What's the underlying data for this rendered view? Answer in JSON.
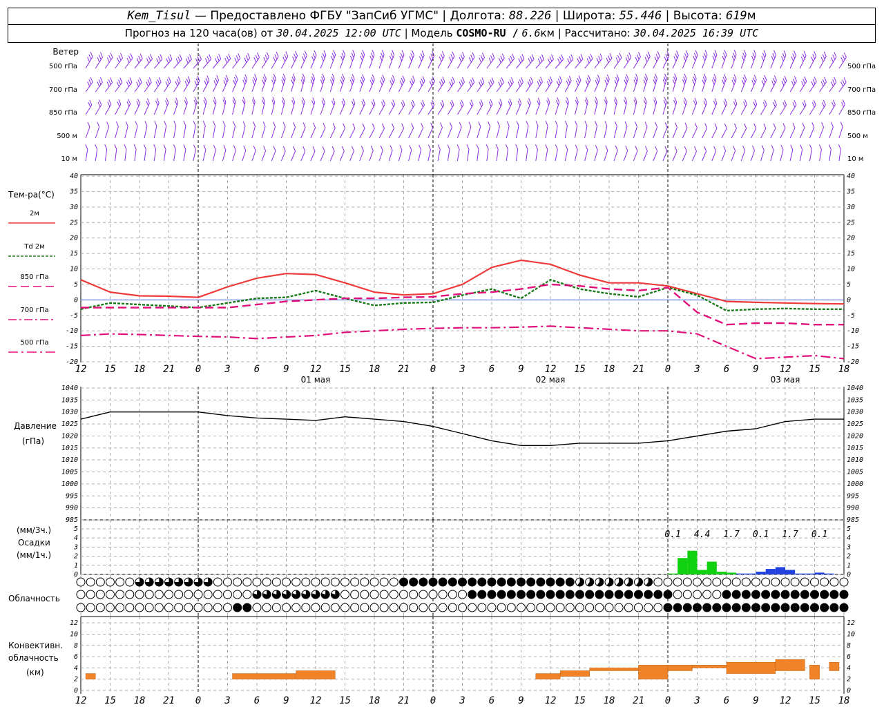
{
  "header": {
    "station": "Kem_Tisul",
    "provided": "— Предоставлено ФГБУ \"ЗапСиб УГМС\"",
    "lon_label": "Долгота:",
    "lon": "88.226",
    "lat_label": "Широта:",
    "lat": "55.446",
    "alt_label": "Высота:",
    "alt": "619",
    "alt_unit": "м",
    "forecast_label": "Прогноз на 120 часа(ов) от",
    "forecast_time": "30.04.2025 12:00 UTC",
    "model_label": "Модель",
    "model": "COSMO-RU /",
    "res": "6.6",
    "res_unit": "км",
    "calc_label": "Рассчитано:",
    "calc_time": "30.04.2025 16:39 UTC"
  },
  "wind_panel": {
    "title": "Ветер",
    "levels": [
      "500 гПа",
      "700 гПа",
      "850 гПа",
      "500 м",
      "10 м"
    ],
    "barb_color": "#8a2be2"
  },
  "temp_panel": {
    "title": "Тем-ра(°C)",
    "legend": [
      {
        "level": "2м",
        "color": "#ee3a3a"
      },
      {
        "level": "2м",
        "prefix": "Td",
        "color": "#1a7a1a"
      },
      {
        "level": "850 гПа",
        "color": "#e0107a"
      },
      {
        "level": "700 гПа",
        "color": "#e0107a"
      },
      {
        "level": "500 гПа",
        "color": "#e0107a"
      }
    ],
    "yticks": [
      40,
      35,
      30,
      25,
      20,
      15,
      10,
      5,
      0,
      -5,
      -10,
      -15,
      -20
    ]
  },
  "pressure_panel": {
    "title": "Давление",
    "unit": "(гПа)",
    "yticks": [
      1040,
      1035,
      1030,
      1025,
      1020,
      1015,
      1010,
      1005,
      1000,
      995,
      990,
      985
    ]
  },
  "precip_panel": {
    "unit3": "(мм/3ч.)",
    "title": "Осадки",
    "unit1": "(мм/1ч.)",
    "yticks": [
      5,
      4,
      3,
      2,
      1,
      0
    ],
    "totals": [
      "0.1",
      "4.4",
      "1.7",
      "0.1",
      "1.7",
      "0.1"
    ]
  },
  "cloud_panel": {
    "title": "Облачность"
  },
  "conv_panel": {
    "title1": "Конвективн.",
    "title2": "облачность",
    "unit": "(км)",
    "yticks": [
      12,
      10,
      8,
      6,
      4,
      2,
      0
    ]
  },
  "x_axis": {
    "ticks": [
      "12",
      "15",
      "18",
      "21",
      "0",
      "3",
      "6",
      "9",
      "12",
      "15",
      "18",
      "21",
      "0",
      "3",
      "6",
      "9",
      "12",
      "15",
      "18",
      "21",
      "0",
      "3",
      "6",
      "9",
      "12",
      "15",
      "18"
    ],
    "dates": [
      "01 мая",
      "02 мая",
      "03 мая"
    ]
  },
  "chart_data": {
    "type": "line",
    "x_hours": [
      0,
      3,
      6,
      9,
      12,
      15,
      18,
      21,
      24,
      27,
      30,
      33,
      36,
      39,
      42,
      45,
      48,
      51,
      54,
      57,
      60,
      63,
      66,
      69,
      72,
      75,
      78
    ],
    "x_tick_labels": [
      "12",
      "15",
      "18",
      "21",
      "0",
      "3",
      "6",
      "9",
      "12",
      "15",
      "18",
      "21",
      "0",
      "3",
      "6",
      "9",
      "12",
      "15",
      "18",
      "21",
      "0",
      "3",
      "6",
      "9",
      "12",
      "15",
      "18"
    ],
    "series": [
      {
        "name": "2м",
        "values": [
          6.5,
          2.5,
          1.3,
          1.2,
          0.8,
          4.2,
          7.0,
          8.5,
          8.2,
          5.5,
          2.5,
          1.6,
          2.0,
          5.0,
          10.5,
          12.8,
          11.5,
          8.0,
          5.5,
          5.5,
          4.5,
          2.0,
          -0.5,
          -0.8,
          -1.0,
          -1.2,
          -1.3
        ]
      },
      {
        "name": "Td 2м",
        "values": [
          -3.0,
          -1.0,
          -1.5,
          -2.0,
          -2.5,
          -1.0,
          0.5,
          0.8,
          3.0,
          0.5,
          -1.8,
          -1.0,
          -0.8,
          1.5,
          3.5,
          0.5,
          6.5,
          3.5,
          2.0,
          1.0,
          4.0,
          1.5,
          -3.5,
          -3.0,
          -2.8,
          -3.0,
          -3.0
        ]
      },
      {
        "name": "850 гПа",
        "values": [
          -2.5,
          -2.5,
          -2.5,
          -2.5,
          -2.5,
          -2.5,
          -1.5,
          -0.5,
          0,
          0.5,
          0.5,
          0.8,
          1.0,
          2.0,
          2.5,
          3.5,
          5.0,
          4.5,
          3.5,
          3.0,
          4.0,
          -4.0,
          -8.0,
          -7.5,
          -7.5,
          -8.0,
          -8.0
        ]
      },
      {
        "name": "700 гПа",
        "values": []
      },
      {
        "name": "500 гПа",
        "values": [
          -11.5,
          -11.0,
          -11.2,
          -11.5,
          -11.8,
          -12.0,
          -12.5,
          -12.0,
          -11.5,
          -10.5,
          -10.0,
          -9.5,
          -9.2,
          -9.0,
          -9.0,
          -8.8,
          -8.5,
          -9.0,
          -9.5,
          -10.0,
          -10.0,
          -11.0,
          -15.0,
          -19.0,
          -18.5,
          -18.0,
          -19.0
        ]
      },
      {
        "name": "Давление",
        "values": [
          1027,
          1030,
          1030,
          1030,
          1030,
          1028.5,
          1027.5,
          1027,
          1026.5,
          1028,
          1027,
          1026,
          1024,
          1021,
          1018,
          1016,
          1016,
          1017,
          1017,
          1017,
          1018,
          1020,
          1022,
          1023,
          1026,
          1027,
          1027
        ]
      }
    ],
    "precip_bars_mm": [
      {
        "h": 60.5,
        "v": 0.1
      },
      {
        "h": 61.5,
        "v": 1.8
      },
      {
        "h": 62.5,
        "v": 2.6
      },
      {
        "h": 63.5,
        "v": 0.5
      },
      {
        "h": 64.5,
        "v": 1.4
      },
      {
        "h": 65.5,
        "v": 0.3
      },
      {
        "h": 66.5,
        "v": 0.2
      },
      {
        "h": 67.5,
        "v": 0.1
      },
      {
        "h": 68.5,
        "v": 0.1
      },
      {
        "h": 69.5,
        "v": 0.3
      },
      {
        "h": 70.5,
        "v": 0.6
      },
      {
        "h": 71.5,
        "v": 0.8
      },
      {
        "h": 72.5,
        "v": 0.5
      },
      {
        "h": 73.5,
        "v": 0.1
      },
      {
        "h": 74.5,
        "v": 0.1
      },
      {
        "h": 75.5,
        "v": 0.2
      },
      {
        "h": 76.5,
        "v": 0.1
      }
    ],
    "conv_cloud_km": [
      {
        "h0": 0.5,
        "h1": 1.5,
        "b": 2,
        "t": 3
      },
      {
        "h0": 15.5,
        "h1": 22,
        "b": 2,
        "t": 3
      },
      {
        "h0": 22,
        "h1": 26,
        "b": 2,
        "t": 3.5
      },
      {
        "h0": 46.5,
        "h1": 49,
        "b": 2,
        "t": 3
      },
      {
        "h0": 49,
        "h1": 52,
        "b": 2.5,
        "t": 3.5
      },
      {
        "h0": 52,
        "h1": 57,
        "b": 3.5,
        "t": 4
      },
      {
        "h0": 57,
        "h1": 60,
        "b": 2,
        "t": 4.5
      },
      {
        "h0": 60,
        "h1": 62.5,
        "b": 3.5,
        "t": 4.5
      },
      {
        "h0": 62.5,
        "h1": 66,
        "b": 4,
        "t": 4.5
      },
      {
        "h0": 66,
        "h1": 71,
        "b": 3,
        "t": 5
      },
      {
        "h0": 71,
        "h1": 74,
        "b": 3.5,
        "t": 5.5
      },
      {
        "h0": 74.5,
        "h1": 75.5,
        "b": 2,
        "t": 4.5
      },
      {
        "h0": 76.5,
        "h1": 77.5,
        "b": 3.5,
        "t": 5
      }
    ],
    "ylim_temp": [
      -20,
      40
    ],
    "ylim_pressure": [
      985,
      1040
    ],
    "ylim_precip": [
      0,
      5
    ],
    "ylim_conv": [
      0,
      13
    ]
  }
}
